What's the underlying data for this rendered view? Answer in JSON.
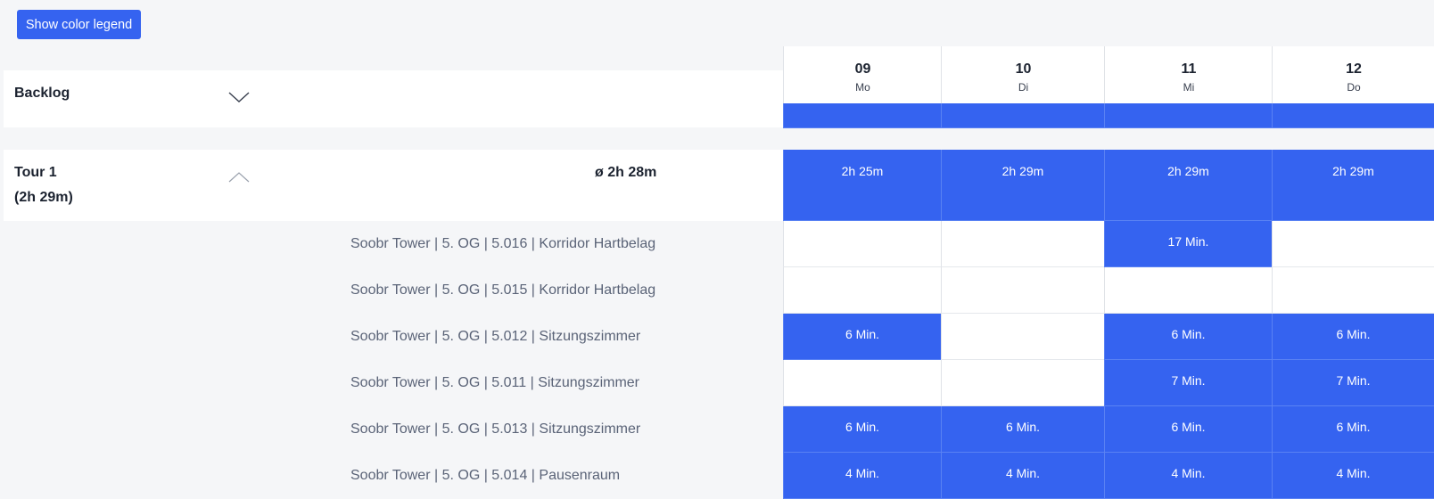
{
  "toolbar": {
    "legend_button": "Show color legend"
  },
  "accent_color": "#3563f0",
  "days": [
    {
      "num": "09",
      "name": "Mo"
    },
    {
      "num": "10",
      "name": "Di"
    },
    {
      "num": "11",
      "name": "Mi"
    },
    {
      "num": "12",
      "name": "Do"
    }
  ],
  "backlog": {
    "title": "Backlog"
  },
  "tour": {
    "title": "Tour 1",
    "subtitle": "(2h 29m)",
    "average": "ø 2h 28m",
    "totals": [
      "2h 25m",
      "2h 29m",
      "2h 29m",
      "2h 29m"
    ],
    "rows": [
      {
        "label": "Soobr Tower | 5. OG | 5.016 | Korridor Hartbelag",
        "cells": [
          "",
          "",
          "17 Min.",
          ""
        ]
      },
      {
        "label": "Soobr Tower | 5. OG | 5.015 | Korridor Hartbelag",
        "cells": [
          "",
          "",
          "",
          ""
        ]
      },
      {
        "label": "Soobr Tower | 5. OG | 5.012 | Sitzungszimmer",
        "cells": [
          "6 Min.",
          "",
          "6 Min.",
          "6 Min."
        ]
      },
      {
        "label": "Soobr Tower | 5. OG | 5.011 | Sitzungszimmer",
        "cells": [
          "",
          "",
          "7 Min.",
          "7 Min."
        ]
      },
      {
        "label": "Soobr Tower | 5. OG | 5.013 | Sitzungszimmer",
        "cells": [
          "6 Min.",
          "6 Min.",
          "6 Min.",
          "6 Min."
        ]
      },
      {
        "label": "Soobr Tower | 5. OG | 5.014 | Pausenraum",
        "cells": [
          "4 Min.",
          "4 Min.",
          "4 Min.",
          "4 Min."
        ]
      }
    ]
  }
}
